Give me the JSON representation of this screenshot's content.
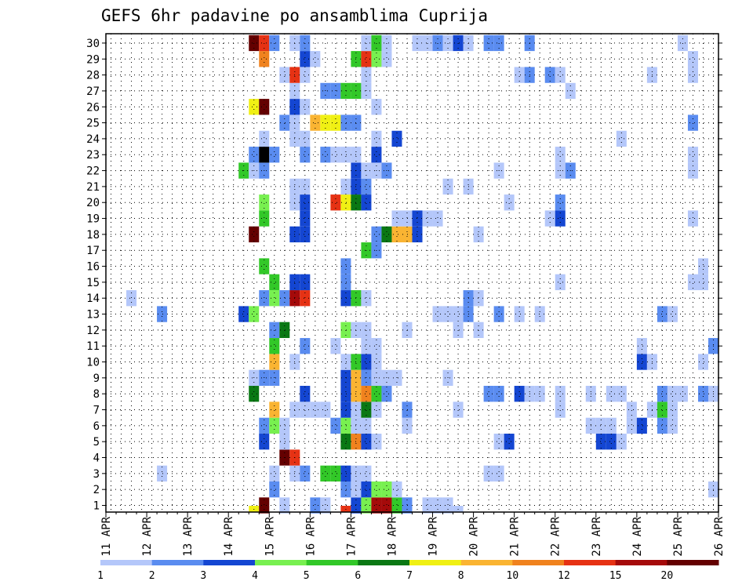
{
  "chart_data": {
    "type": "heatmap",
    "title": "GEFS 6hr padavine po ansamblima Cuprija",
    "xlabel": "",
    "ylabel": "",
    "x_ticks": [
      "11 APR",
      "12 APR",
      "13 APR",
      "14 APR",
      "15 APR",
      "16 APR",
      "17 APR",
      "18 APR",
      "19 APR",
      "20 APR",
      "21 APR",
      "22 APR",
      "23 APR",
      "24 APR",
      "25 APR",
      "26 APR"
    ],
    "y_ticks": [
      "1",
      "2",
      "3",
      "4",
      "5",
      "6",
      "7",
      "8",
      "9",
      "10",
      "11",
      "12",
      "13",
      "14",
      "15",
      "16",
      "17",
      "18",
      "19",
      "20",
      "21",
      "22",
      "23",
      "24",
      "25",
      "26",
      "27",
      "28",
      "29",
      "30"
    ],
    "x_range_days": [
      11,
      26
    ],
    "y_range": [
      0,
      30
    ],
    "time_step_hours": 6,
    "grid": true,
    "colorbar": {
      "levels": [
        "1",
        "2",
        "3",
        "4",
        "5",
        "6",
        "7",
        "8",
        "10",
        "12",
        "15",
        "20"
      ],
      "colors": [
        "#b4c7fa",
        "#5a8cf0",
        "#1446d2",
        "#78f050",
        "#32c828",
        "#0a7814",
        "#f0f014",
        "#fab432",
        "#f0821e",
        "#e63214",
        "#a50a0a",
        "#640000"
      ],
      "units": ""
    },
    "value_classes_note": "class index k (1..13) = color bin k-1",
    "cells_by_member": {
      "0": [
        [
          14.5,
          7
        ],
        [
          16.25,
          4
        ],
        [
          16.75,
          10
        ],
        [
          17.25,
          10
        ],
        [
          17.5,
          1
        ],
        [
          17.75,
          11
        ],
        [
          19.25,
          1
        ],
        [
          19.5,
          1
        ]
      ],
      "1": [
        [
          14.75,
          12
        ],
        [
          15.25,
          1
        ],
        [
          16.0,
          2
        ],
        [
          16.25,
          1
        ],
        [
          17.0,
          3
        ],
        [
          17.25,
          4
        ],
        [
          17.5,
          11
        ],
        [
          17.75,
          11
        ],
        [
          18.0,
          5
        ],
        [
          18.25,
          2
        ],
        [
          18.75,
          1
        ],
        [
          19.0,
          1
        ],
        [
          19.25,
          1
        ]
      ],
      "2": [
        [
          15.0,
          2
        ],
        [
          16.75,
          2
        ],
        [
          17.0,
          1
        ],
        [
          17.25,
          3
        ],
        [
          17.5,
          4
        ],
        [
          17.75,
          4
        ],
        [
          18.0,
          1
        ],
        [
          25.75,
          1
        ]
      ],
      "3": [
        [
          12.25,
          1
        ],
        [
          15.0,
          1
        ],
        [
          15.5,
          1
        ],
        [
          15.75,
          2
        ],
        [
          16.25,
          5
        ],
        [
          16.5,
          5
        ],
        [
          16.75,
          3
        ],
        [
          17.0,
          1
        ],
        [
          17.25,
          1
        ],
        [
          20.25,
          1
        ],
        [
          20.5,
          1
        ],
        [
          26.25,
          3
        ],
        [
          26.5,
          4
        ]
      ],
      "4": [
        [
          15.25,
          12
        ],
        [
          15.5,
          10
        ]
      ],
      "5": [
        [
          14.75,
          3
        ],
        [
          15.25,
          1
        ],
        [
          16.75,
          6
        ],
        [
          17.0,
          9
        ],
        [
          17.25,
          3
        ],
        [
          17.5,
          1
        ],
        [
          20.5,
          1
        ],
        [
          20.75,
          3
        ],
        [
          23.0,
          3
        ],
        [
          23.25,
          3
        ],
        [
          23.5,
          1
        ],
        [
          26.25,
          4
        ],
        [
          26.5,
          3
        ]
      ],
      "6": [
        [
          14.75,
          2
        ],
        [
          15.0,
          4
        ],
        [
          15.25,
          1
        ],
        [
          16.5,
          2
        ],
        [
          16.75,
          4
        ],
        [
          17.0,
          1
        ],
        [
          17.25,
          1
        ],
        [
          18.25,
          1
        ],
        [
          22.75,
          1
        ],
        [
          23.0,
          1
        ],
        [
          23.25,
          1
        ],
        [
          23.75,
          1
        ],
        [
          24.0,
          3
        ],
        [
          24.5,
          2
        ],
        [
          24.75,
          1
        ]
      ],
      "7": [
        [
          15.0,
          8
        ],
        [
          15.5,
          1
        ],
        [
          15.75,
          1
        ],
        [
          16.0,
          1
        ],
        [
          16.25,
          1
        ],
        [
          16.75,
          3
        ],
        [
          17.0,
          1
        ],
        [
          17.25,
          6
        ],
        [
          17.5,
          1
        ],
        [
          18.25,
          2
        ],
        [
          19.5,
          1
        ],
        [
          22.0,
          1
        ],
        [
          23.75,
          1
        ],
        [
          24.25,
          1
        ],
        [
          24.5,
          5
        ],
        [
          24.75,
          1
        ]
      ],
      "8": [
        [
          14.5,
          6
        ],
        [
          15.75,
          3
        ],
        [
          16.75,
          3
        ],
        [
          17.0,
          8
        ],
        [
          17.25,
          9
        ],
        [
          17.5,
          5
        ],
        [
          17.75,
          2
        ],
        [
          20.25,
          2
        ],
        [
          20.5,
          2
        ],
        [
          21.0,
          3
        ],
        [
          21.25,
          1
        ],
        [
          21.5,
          1
        ],
        [
          22.0,
          1
        ],
        [
          22.75,
          1
        ],
        [
          23.25,
          1
        ],
        [
          23.5,
          1
        ],
        [
          24.5,
          2
        ],
        [
          24.75,
          1
        ],
        [
          25.0,
          1
        ],
        [
          25.5,
          2
        ],
        [
          25.75,
          1
        ]
      ],
      "9": [
        [
          14.5,
          1
        ],
        [
          14.75,
          2
        ],
        [
          15.0,
          2
        ],
        [
          16.75,
          3
        ],
        [
          17.0,
          8
        ],
        [
          17.25,
          2
        ],
        [
          17.5,
          1
        ],
        [
          17.75,
          1
        ],
        [
          18.0,
          1
        ],
        [
          19.25,
          1
        ]
      ],
      "10": [
        [
          15.0,
          8
        ],
        [
          15.5,
          1
        ],
        [
          16.75,
          1
        ],
        [
          17.0,
          5
        ],
        [
          17.25,
          3
        ],
        [
          17.5,
          1
        ],
        [
          24.0,
          3
        ],
        [
          24.25,
          1
        ],
        [
          25.5,
          1
        ]
      ],
      "11": [
        [
          15.0,
          5
        ],
        [
          15.75,
          2
        ],
        [
          16.5,
          1
        ],
        [
          17.25,
          1
        ],
        [
          17.5,
          1
        ],
        [
          24.0,
          1
        ],
        [
          25.75,
          2
        ]
      ],
      "12": [
        [
          15.0,
          2
        ],
        [
          15.25,
          6
        ],
        [
          16.75,
          4
        ],
        [
          17.0,
          1
        ],
        [
          17.25,
          1
        ],
        [
          18.25,
          1
        ],
        [
          19.5,
          1
        ],
        [
          20.0,
          1
        ]
      ],
      "13": [
        [
          12.25,
          2
        ],
        [
          14.25,
          3
        ],
        [
          14.5,
          4
        ],
        [
          19.0,
          1
        ],
        [
          19.25,
          1
        ],
        [
          19.5,
          1
        ],
        [
          19.75,
          2
        ],
        [
          20.5,
          2
        ],
        [
          21.0,
          1
        ],
        [
          21.5,
          1
        ],
        [
          24.5,
          2
        ],
        [
          24.75,
          1
        ]
      ],
      "14": [
        [
          11.5,
          1
        ],
        [
          14.75,
          2
        ],
        [
          15.0,
          4
        ],
        [
          15.25,
          2
        ],
        [
          15.5,
          11
        ],
        [
          15.75,
          10
        ],
        [
          16.75,
          3
        ],
        [
          17.0,
          5
        ],
        [
          17.25,
          1
        ],
        [
          19.75,
          2
        ],
        [
          20.0,
          1
        ],
        [
          26.75,
          2
        ]
      ],
      "15": [
        [
          15.0,
          5
        ],
        [
          15.5,
          3
        ],
        [
          15.75,
          3
        ],
        [
          16.75,
          2
        ],
        [
          22.0,
          1
        ],
        [
          25.25,
          1
        ],
        [
          25.5,
          1
        ],
        [
          26.25,
          5
        ],
        [
          26.5,
          11
        ],
        [
          26.75,
          2
        ]
      ],
      "16": [
        [
          14.75,
          5
        ],
        [
          16.75,
          2
        ],
        [
          25.5,
          1
        ]
      ],
      "17": [
        [
          17.25,
          5
        ],
        [
          17.5,
          2
        ]
      ],
      "18": [
        [
          14.5,
          12
        ],
        [
          15.5,
          3
        ],
        [
          15.75,
          3
        ],
        [
          17.5,
          2
        ],
        [
          17.75,
          6
        ],
        [
          18.0,
          8
        ],
        [
          18.25,
          8
        ],
        [
          18.5,
          3
        ],
        [
          20.0,
          1
        ]
      ],
      "19": [
        [
          14.75,
          5
        ],
        [
          15.75,
          3
        ],
        [
          18.0,
          1
        ],
        [
          18.25,
          1
        ],
        [
          18.5,
          3
        ],
        [
          18.75,
          1
        ],
        [
          19.0,
          1
        ],
        [
          21.75,
          1
        ],
        [
          22.0,
          3
        ],
        [
          25.25,
          1
        ]
      ],
      "20": [
        [
          14.75,
          4
        ],
        [
          15.5,
          1
        ],
        [
          15.75,
          3
        ],
        [
          16.5,
          10
        ],
        [
          16.75,
          7
        ],
        [
          17.0,
          6
        ],
        [
          17.25,
          3
        ],
        [
          20.75,
          1
        ],
        [
          22.0,
          2
        ],
        [
          26.75,
          3
        ]
      ],
      "21": [
        [
          15.5,
          1
        ],
        [
          15.75,
          1
        ],
        [
          16.75,
          1
        ],
        [
          17.0,
          3
        ],
        [
          17.25,
          2
        ],
        [
          19.25,
          1
        ],
        [
          19.75,
          1
        ]
      ],
      "22": [
        [
          14.25,
          5
        ],
        [
          14.5,
          1
        ],
        [
          14.75,
          2
        ],
        [
          17.0,
          3
        ],
        [
          17.25,
          1
        ],
        [
          17.5,
          1
        ],
        [
          17.75,
          2
        ],
        [
          20.5,
          1
        ],
        [
          22.0,
          1
        ],
        [
          22.25,
          2
        ],
        [
          25.25,
          1
        ]
      ],
      "23": [
        [
          14.5,
          2
        ],
        [
          14.75,
          13
        ],
        [
          15.0,
          2
        ],
        [
          15.75,
          2
        ],
        [
          16.25,
          2
        ],
        [
          16.5,
          1
        ],
        [
          16.75,
          1
        ],
        [
          17.0,
          1
        ],
        [
          17.5,
          3
        ],
        [
          22.0,
          1
        ],
        [
          25.25,
          1
        ],
        [
          26.25,
          1
        ],
        [
          26.5,
          1
        ]
      ],
      "24": [
        [
          14.75,
          1
        ],
        [
          15.5,
          1
        ],
        [
          15.75,
          1
        ],
        [
          17.5,
          1
        ],
        [
          18.0,
          3
        ],
        [
          23.5,
          1
        ]
      ],
      "25": [
        [
          15.25,
          2
        ],
        [
          15.5,
          1
        ],
        [
          16.0,
          8
        ],
        [
          16.25,
          7
        ],
        [
          16.5,
          7
        ],
        [
          16.75,
          2
        ],
        [
          17.0,
          2
        ],
        [
          25.25,
          2
        ]
      ],
      "26": [
        [
          14.5,
          7
        ],
        [
          14.75,
          12
        ],
        [
          15.5,
          3
        ],
        [
          15.75,
          1
        ],
        [
          17.5,
          1
        ],
        [
          26.25,
          2
        ],
        [
          26.5,
          1
        ],
        [
          26.75,
          3
        ],
        [
          27.0,
          8
        ]
      ],
      "27": [
        [
          15.5,
          1
        ],
        [
          16.25,
          2
        ],
        [
          16.5,
          2
        ],
        [
          16.75,
          5
        ],
        [
          17.0,
          5
        ],
        [
          17.25,
          1
        ],
        [
          22.25,
          1
        ]
      ],
      "28": [
        [
          15.25,
          1
        ],
        [
          15.5,
          10
        ],
        [
          15.75,
          1
        ],
        [
          17.25,
          1
        ],
        [
          21.0,
          1
        ],
        [
          21.25,
          2
        ],
        [
          21.75,
          2
        ],
        [
          22.0,
          1
        ],
        [
          24.25,
          1
        ],
        [
          25.25,
          1
        ]
      ],
      "29": [
        [
          14.75,
          9
        ],
        [
          15.75,
          3
        ],
        [
          16.0,
          1
        ],
        [
          17.0,
          5
        ],
        [
          17.25,
          10
        ],
        [
          17.5,
          4
        ],
        [
          17.75,
          1
        ],
        [
          25.25,
          1
        ]
      ],
      "30": [
        [
          14.5,
          12
        ],
        [
          14.75,
          10
        ],
        [
          15.0,
          2
        ],
        [
          15.5,
          1
        ],
        [
          15.75,
          2
        ],
        [
          17.25,
          1
        ],
        [
          17.5,
          5
        ],
        [
          17.75,
          1
        ],
        [
          18.5,
          1
        ],
        [
          18.75,
          1
        ],
        [
          19.0,
          2
        ],
        [
          19.25,
          1
        ],
        [
          19.5,
          3
        ],
        [
          19.75,
          1
        ],
        [
          20.25,
          2
        ],
        [
          20.5,
          2
        ],
        [
          21.25,
          2
        ],
        [
          25.0,
          1
        ],
        [
          26.25,
          2
        ],
        [
          26.5,
          1
        ]
      ]
    }
  }
}
